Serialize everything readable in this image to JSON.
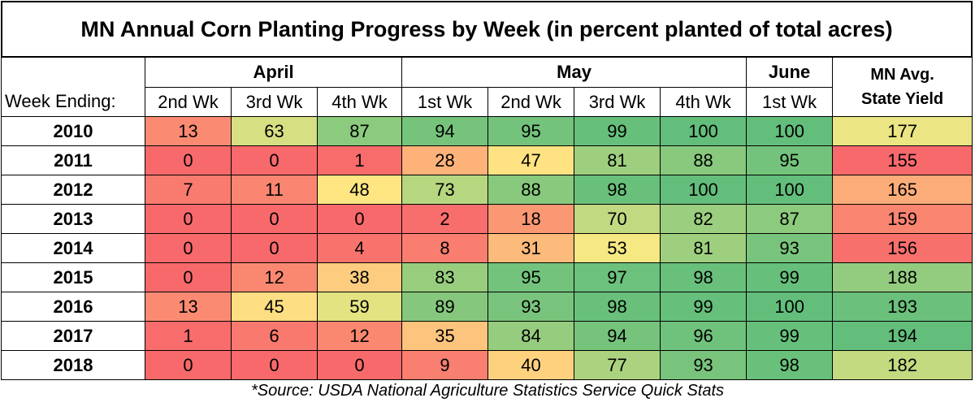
{
  "title": "MN Annual Corn Planting Progress by Week (in percent planted of total acres)",
  "header": {
    "row_label": "Week Ending:",
    "months": [
      {
        "label": "April",
        "span": 3
      },
      {
        "label": "May",
        "span": 4
      },
      {
        "label": "June",
        "span": 1
      }
    ],
    "weeks": [
      "2nd Wk",
      "3rd Wk",
      "4th Wk",
      "1st Wk",
      "2nd Wk",
      "3rd Wk",
      "4th Wk",
      "1st Wk"
    ],
    "yield_label_line1": "MN Avg.",
    "yield_label_line2": "State Yield"
  },
  "source": "*Source: USDA National Agriculture Statistics Service Quick Stats",
  "colors": {
    "scale_low": "#f8696b",
    "scale_mid": "#ffeb84",
    "scale_high": "#63be7b"
  },
  "chart_data": {
    "type": "table",
    "title": "MN Annual Corn Planting Progress by Week (in percent planted of total acres)",
    "columns": [
      "April 2nd Wk",
      "April 3rd Wk",
      "April 4th Wk",
      "May 1st Wk",
      "May 2nd Wk",
      "May 3rd Wk",
      "May 4th Wk",
      "June 1st Wk",
      "MN Avg. State Yield"
    ],
    "rows": [
      {
        "year": "2010",
        "progress": [
          13,
          63,
          87,
          94,
          95,
          99,
          100,
          100
        ],
        "yield": 177
      },
      {
        "year": "2011",
        "progress": [
          0,
          0,
          1,
          28,
          47,
          81,
          88,
          95
        ],
        "yield": 155
      },
      {
        "year": "2012",
        "progress": [
          7,
          11,
          48,
          73,
          88,
          98,
          100,
          100
        ],
        "yield": 165
      },
      {
        "year": "2013",
        "progress": [
          0,
          0,
          0,
          2,
          18,
          70,
          82,
          87
        ],
        "yield": 159
      },
      {
        "year": "2014",
        "progress": [
          0,
          0,
          4,
          8,
          31,
          53,
          81,
          93
        ],
        "yield": 156
      },
      {
        "year": "2015",
        "progress": [
          0,
          12,
          38,
          83,
          95,
          97,
          98,
          99
        ],
        "yield": 188
      },
      {
        "year": "2016",
        "progress": [
          13,
          45,
          59,
          89,
          93,
          98,
          99,
          100
        ],
        "yield": 193
      },
      {
        "year": "2017",
        "progress": [
          1,
          6,
          12,
          35,
          84,
          94,
          96,
          99
        ],
        "yield": 194
      },
      {
        "year": "2018",
        "progress": [
          0,
          0,
          0,
          9,
          40,
          77,
          93,
          98
        ],
        "yield": 182
      }
    ]
  }
}
